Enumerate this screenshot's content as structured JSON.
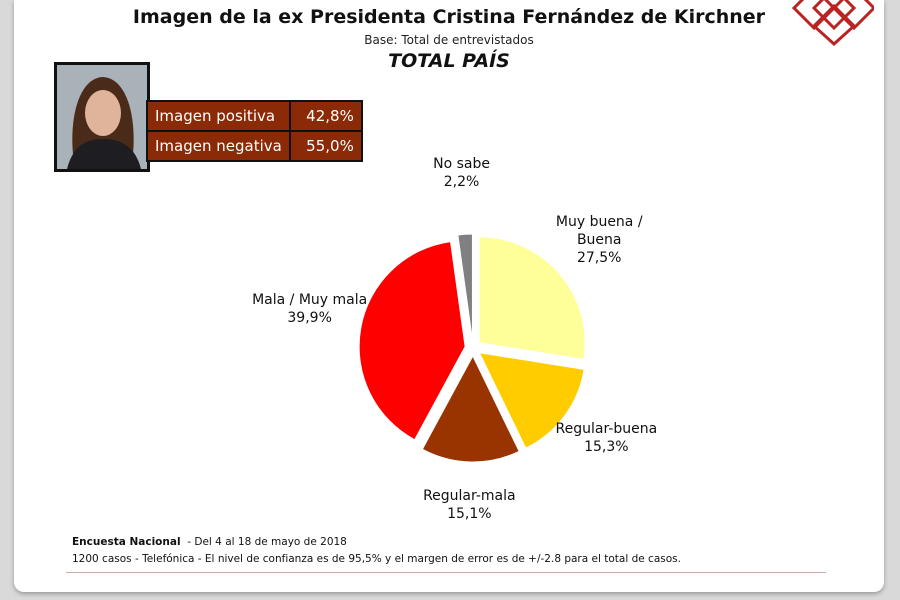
{
  "chart_data": {
    "type": "pie",
    "title": "Imagen de la ex Presidenta Cristina Fernández de Kirchner",
    "subtitle": "Base: Total de entrevistados",
    "heading": "TOTAL PAÍS",
    "categories": [
      "Muy buena / Buena",
      "Regular-buena",
      "Regular-mala",
      "Mala / Muy mala",
      "No sabe"
    ],
    "values": [
      27.5,
      15.3,
      15.1,
      39.9,
      2.2
    ],
    "value_labels": [
      "27,5%",
      "15,3%",
      "15,1%",
      "39,9%",
      "2,2%"
    ],
    "colors": [
      "#ffff99",
      "#ffcc00",
      "#993300",
      "#ff0000",
      "#808080"
    ]
  },
  "summary": {
    "rows": [
      [
        "Imagen positiva",
        "42,8%"
      ],
      [
        "Imagen negativa",
        "55,0%"
      ]
    ]
  },
  "footer": {
    "survey": "Encuesta Nacional",
    "dates": "- Del 4 al 18 de mayo de 2018",
    "details": "1200 casos - Telefónica - El nivel de confianza es de 95,5% y el margen de error es de +/-2.8 para el total de casos."
  }
}
